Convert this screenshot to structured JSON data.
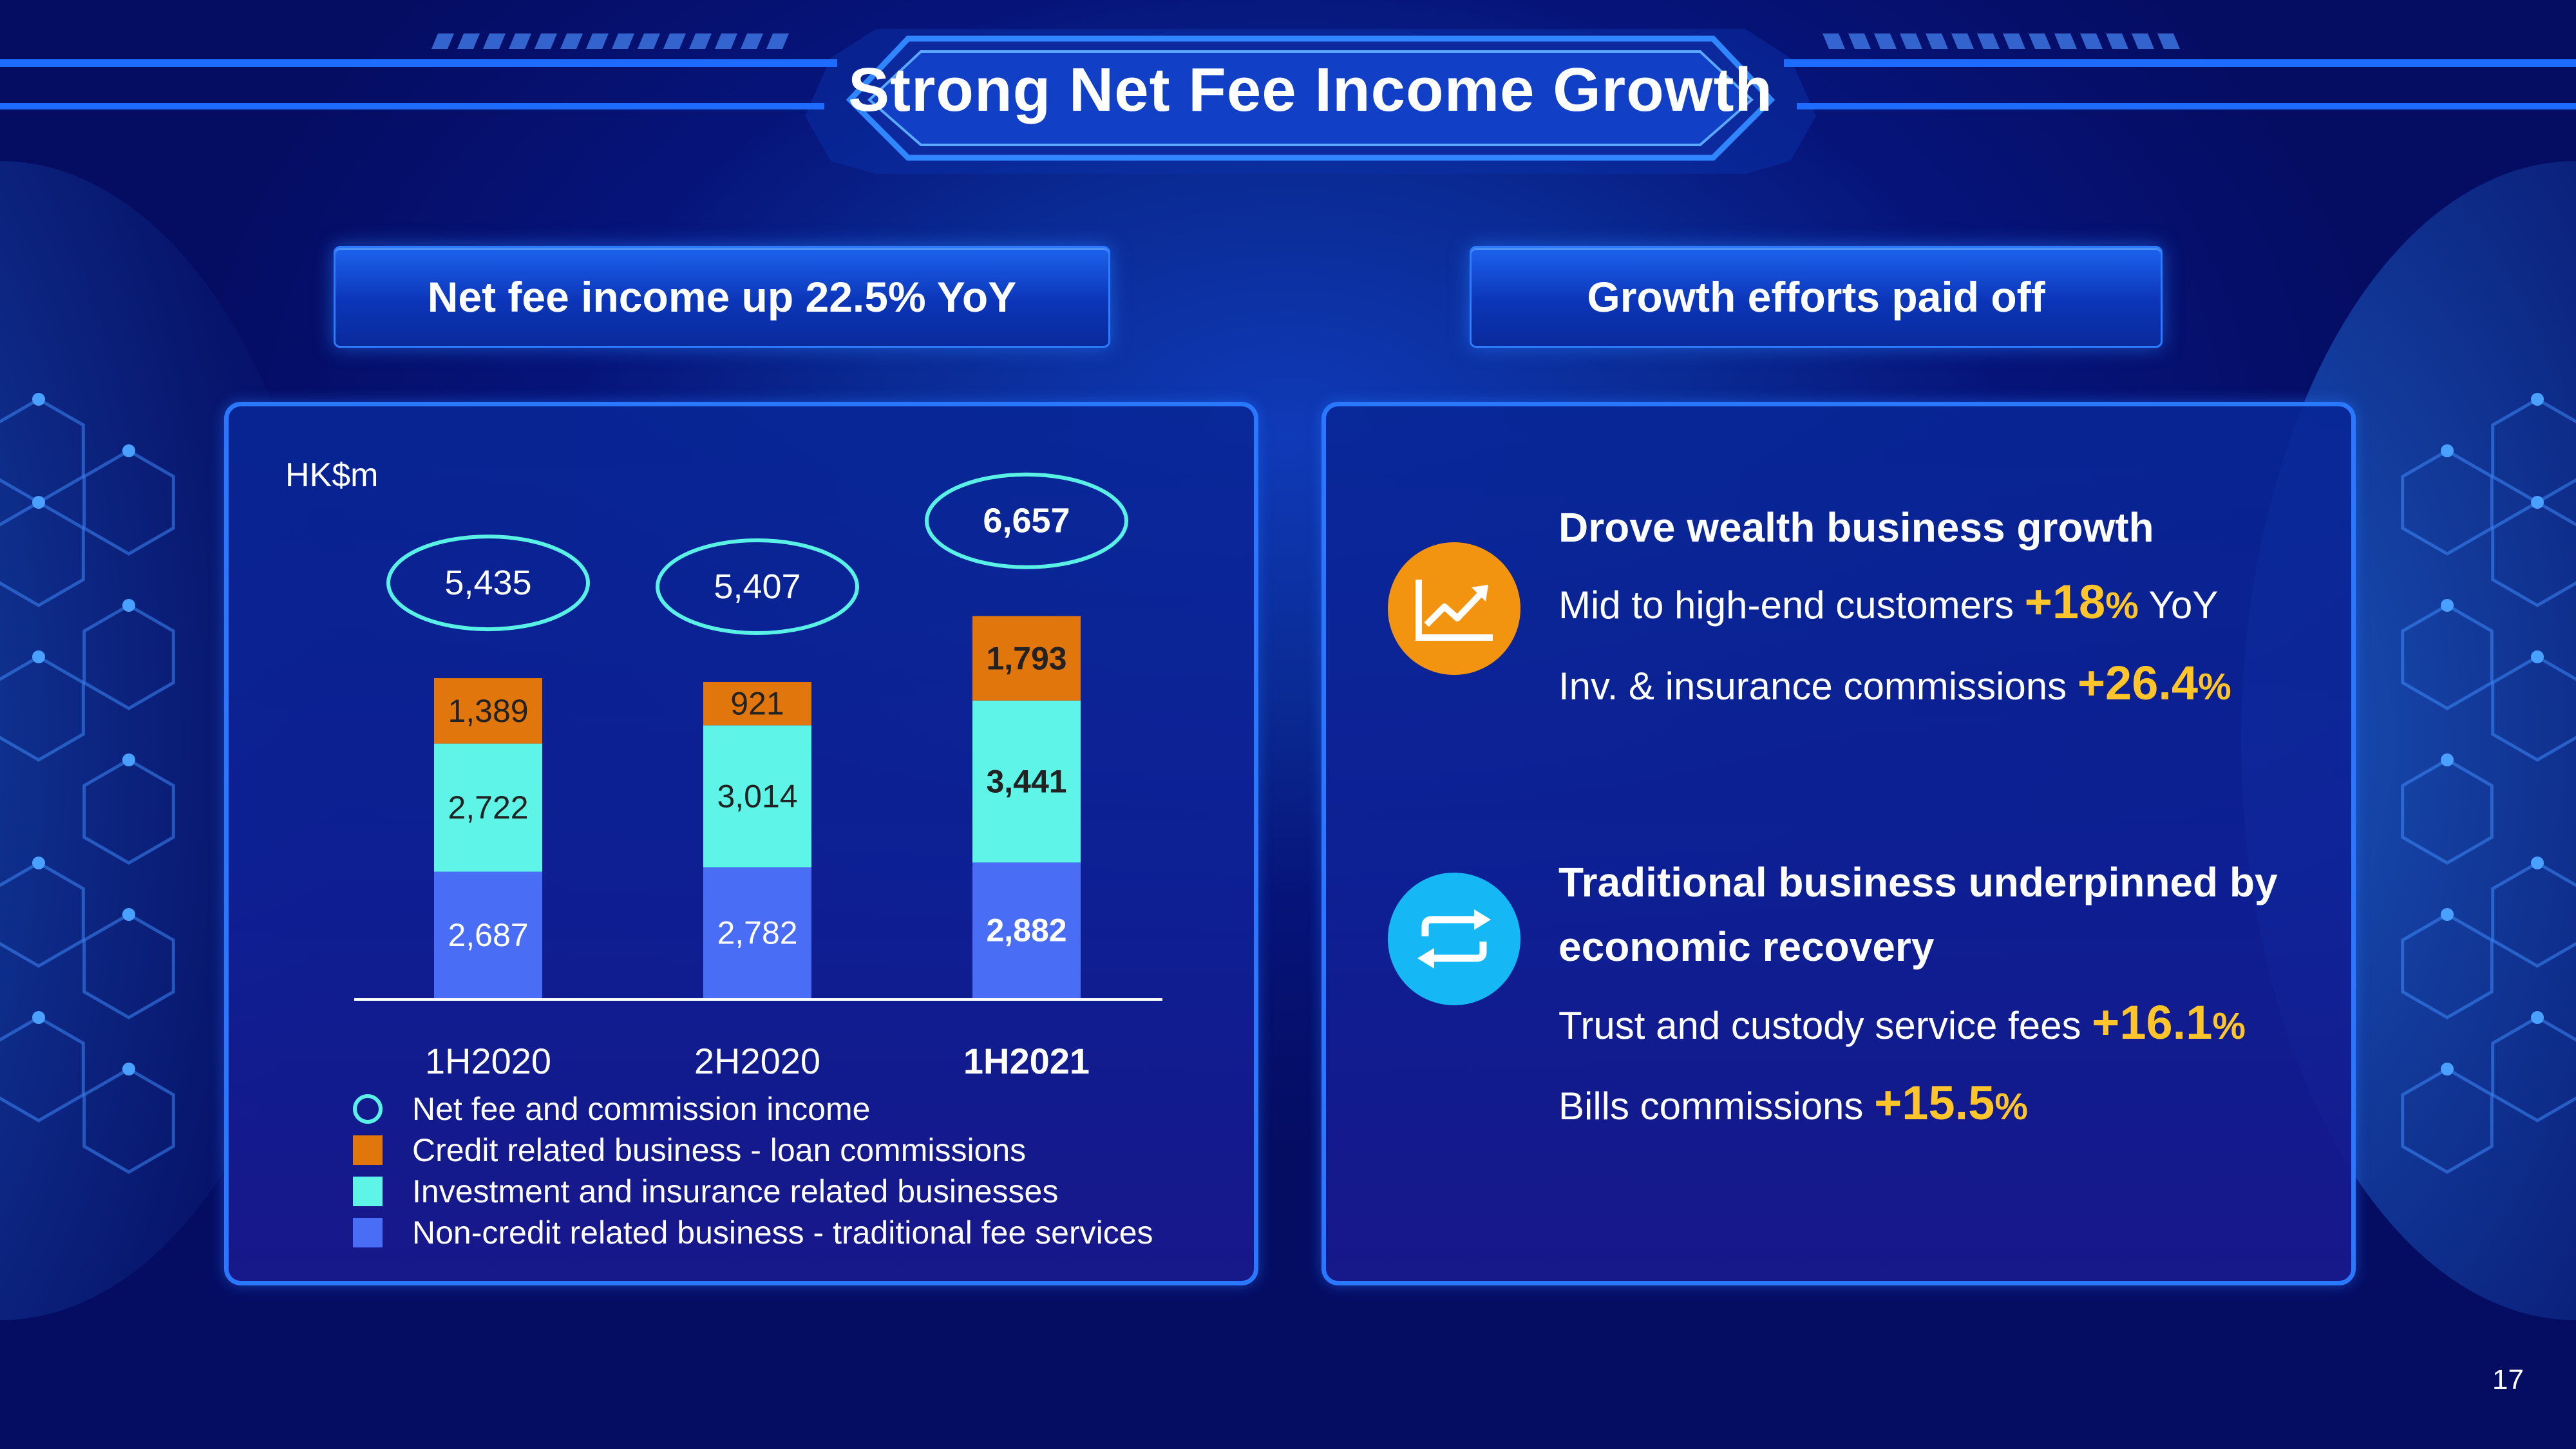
{
  "slide": {
    "title": "Strong Net Fee Income Growth",
    "page_number": "17"
  },
  "left_section": {
    "header": "Net fee income up 22.5% YoY",
    "unit_label": "HK$m"
  },
  "right_section": {
    "header": "Growth efforts paid off",
    "wealth": {
      "icon": "trend-up-chart-icon",
      "heading": "Drove wealth business growth",
      "line1_text": "Mid to high-end customers ",
      "line1_value": "+18",
      "line1_unit": "%",
      "line1_suffix": " YoY",
      "line2_text": "Inv. & insurance commissions ",
      "line2_value": "+26.4",
      "line2_unit": "%"
    },
    "traditional": {
      "icon": "repeat-arrows-icon",
      "heading_line1": "Traditional business underpinned by",
      "heading_line2": "economic recovery",
      "line1_text": "Trust and custody service fees ",
      "line1_value": "+16.1",
      "line1_unit": "%",
      "line2_text": "Bills commissions ",
      "line2_value": "+15.5",
      "line2_unit": "%"
    }
  },
  "colors": {
    "credit": "#e0760c",
    "investment": "#5ef4e8",
    "noncredit": "#4a6df5",
    "highlight": "#ffc52a",
    "total_ring": "#59f0e6",
    "panel_border": "#2a78ff"
  },
  "chart_data": {
    "type": "bar",
    "stacked": true,
    "categories": [
      "1H2020",
      "2H2020",
      "1H2021"
    ],
    "highlight_category": "1H2021",
    "series": [
      {
        "name": "Non-credit related business - traditional fee services",
        "values": [
          2687,
          2782,
          2882
        ],
        "labels": [
          "2,687",
          "2,782",
          "2,882"
        ]
      },
      {
        "name": "Investment and insurance related businesses",
        "values": [
          2722,
          3014,
          3441
        ],
        "labels": [
          "2,722",
          "3,014",
          "3,441"
        ]
      },
      {
        "name": "Credit related business - loan commissions",
        "values": [
          1389,
          921,
          1793
        ],
        "labels": [
          "1,389",
          "921",
          "1,793"
        ]
      }
    ],
    "totals": {
      "name": "Net fee and commission income",
      "values": [
        5435,
        5407,
        6657
      ],
      "labels": [
        "5,435",
        "5,407",
        "6,657"
      ]
    },
    "ylabel": "HK$m",
    "legend_position": "bottom-left",
    "grid": false
  }
}
